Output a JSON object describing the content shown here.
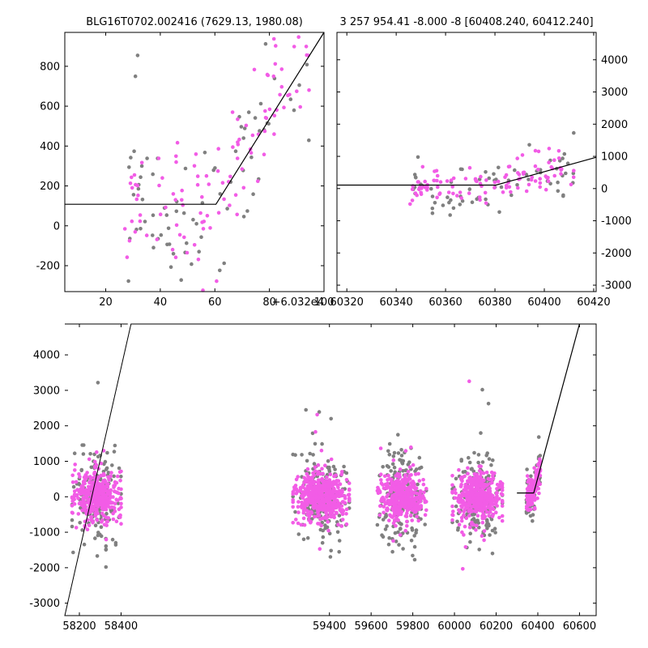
{
  "colors": {
    "sample_a": "#f25ce6",
    "sample_b": "#808080",
    "model": "#000000",
    "frame": "#000000"
  },
  "chart_data": [
    {
      "id": "zoom",
      "type": "scatter",
      "title": "BLG16T0702.002416 (7629.13, 1980.08)",
      "x_offset_label": "+6.032e4",
      "xlim": [
        5,
        100
      ],
      "ylim": [
        -330,
        970
      ],
      "x_ticks": [
        20,
        40,
        60,
        80,
        100
      ],
      "y_ticks": [
        -200,
        0,
        200,
        400,
        600,
        800
      ],
      "y_tick_side": "left",
      "model": {
        "x": [
          5,
          60.4,
          100
        ],
        "y": [
          108,
          108,
          970
        ]
      },
      "seed": 11,
      "points": {
        "n_pink": 110,
        "n_gray": 80,
        "x_range": [
          27,
          95
        ]
      }
    },
    {
      "id": "window",
      "type": "scatter",
      "title": "3 257 954.41 -8.000 -8 [60408.240, 60412.240]",
      "xlim": [
        60316,
        60421
      ],
      "ylim": [
        -3200,
        4850
      ],
      "x_ticks": [
        60320,
        60340,
        60360,
        60380,
        60400,
        60420
      ],
      "y_ticks": [
        -3000,
        -2000,
        -1000,
        0,
        1000,
        2000,
        3000,
        4000
      ],
      "y_tick_side": "right",
      "model": {
        "x": [
          60316,
          60380.4,
          60421
        ],
        "y": [
          108,
          108,
          970
        ]
      },
      "seed": 23,
      "points": {
        "n_pink": 110,
        "n_gray": 70,
        "x_range": [
          60345,
          60412
        ]
      }
    },
    {
      "id": "full",
      "type": "scatter",
      "xlim": [
        58130,
        60680
      ],
      "ylim": [
        -3350,
        4870
      ],
      "x_ticks": [
        58200,
        58400,
        59400,
        59600,
        59800,
        60000,
        60200,
        60400,
        60600
      ],
      "y_ticks": [
        -3000,
        -2000,
        -1000,
        0,
        1000,
        2000,
        3000,
        4000
      ],
      "y_tick_side": "left",
      "axis_break": 58440,
      "model": {
        "x": [
          60300,
          60380.4,
          60600
        ],
        "y": [
          108,
          108,
          4870
        ]
      },
      "seeds": [
        101,
        202,
        303,
        404,
        505
      ],
      "seasons": [
        {
          "x_range": [
            58165,
            58400
          ],
          "n_pink": 420,
          "n_gray": 180
        },
        {
          "x_range": [
            59225,
            59495
          ],
          "n_pink": 460,
          "n_gray": 200
        },
        {
          "x_range": [
            59630,
            59865
          ],
          "n_pink": 400,
          "n_gray": 190
        },
        {
          "x_range": [
            59990,
            60230
          ],
          "n_pink": 430,
          "n_gray": 190
        },
        {
          "x_range": [
            60345,
            60412
          ],
          "n_pink": 140,
          "n_gray": 60
        }
      ]
    }
  ]
}
